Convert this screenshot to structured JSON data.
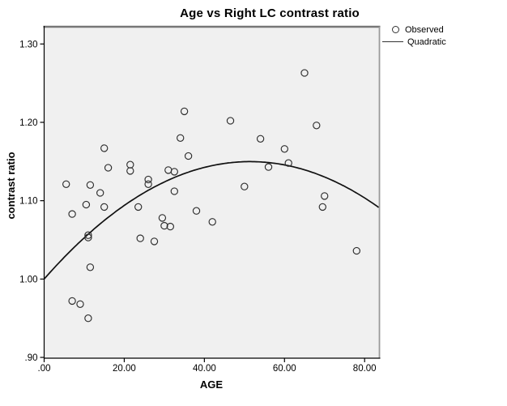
{
  "title": "Age vs Right LC contrast ratio",
  "legend": {
    "items": [
      {
        "label": "Observed",
        "marker": "open-circle"
      },
      {
        "label": "Quadratic",
        "marker": "solid-line"
      }
    ]
  },
  "colors": {
    "page_background": "#ffffff",
    "plot_background": "#f0f0f0",
    "frame_top": "#777777",
    "frame_right": "#9a9a9a",
    "axis": "#000000",
    "marker_stroke": "#2e2e2e",
    "curve": "#111111",
    "text": "#000000"
  },
  "chart_data": {
    "type": "scatter",
    "title": "Age vs Right LC contrast ratio",
    "xlabel": "AGE",
    "ylabel": "contrast ratio",
    "xlim": [
      0,
      83.7
    ],
    "ylim": [
      0.899,
      1.322
    ],
    "x_ticks": {
      "values": [
        0,
        20,
        40,
        60,
        80
      ],
      "labels": [
        ".00",
        "20.00",
        "40.00",
        "60.00",
        "80.00"
      ]
    },
    "y_ticks": {
      "values": [
        0.9,
        1.0,
        1.1,
        1.2,
        1.3
      ],
      "labels": [
        ".90",
        "1.00",
        "1.10",
        "1.20",
        "1.30"
      ]
    },
    "grid": false,
    "legend_position": "top-right-outside",
    "series": [
      {
        "name": "Observed",
        "kind": "points",
        "points": [
          [
            5.5,
            1.121
          ],
          [
            7,
            1.083
          ],
          [
            7,
            0.972
          ],
          [
            9,
            0.968
          ],
          [
            10.5,
            1.095
          ],
          [
            11,
            1.056
          ],
          [
            11,
            1.053
          ],
          [
            11,
            0.95
          ],
          [
            11.5,
            1.12
          ],
          [
            11.5,
            1.015
          ],
          [
            14,
            1.11
          ],
          [
            15,
            1.167
          ],
          [
            15,
            1.092
          ],
          [
            16,
            1.142
          ],
          [
            21.5,
            1.146
          ],
          [
            21.5,
            1.138
          ],
          [
            23.5,
            1.092
          ],
          [
            24,
            1.052
          ],
          [
            26,
            1.127
          ],
          [
            26,
            1.121
          ],
          [
            27.5,
            1.048
          ],
          [
            29.5,
            1.078
          ],
          [
            30,
            1.068
          ],
          [
            31,
            1.139
          ],
          [
            31.5,
            1.067
          ],
          [
            32.5,
            1.137
          ],
          [
            32.5,
            1.112
          ],
          [
            34,
            1.18
          ],
          [
            35,
            1.214
          ],
          [
            36,
            1.157
          ],
          [
            38,
            1.087
          ],
          [
            42,
            1.073
          ],
          [
            46.5,
            1.202
          ],
          [
            50,
            1.118
          ],
          [
            54,
            1.179
          ],
          [
            56,
            1.143
          ],
          [
            60,
            1.166
          ],
          [
            61,
            1.148
          ],
          [
            65,
            1.263
          ],
          [
            68,
            1.196
          ],
          [
            69.5,
            1.092
          ],
          [
            70,
            1.106
          ],
          [
            78,
            1.036
          ]
        ]
      },
      {
        "name": "Quadratic",
        "kind": "quadratic_fit",
        "coefficients": {
          "intercept": 1.0,
          "linear": 0.00583,
          "quadratic": -5.67e-05
        },
        "domain": [
          0,
          83.7
        ]
      }
    ]
  }
}
